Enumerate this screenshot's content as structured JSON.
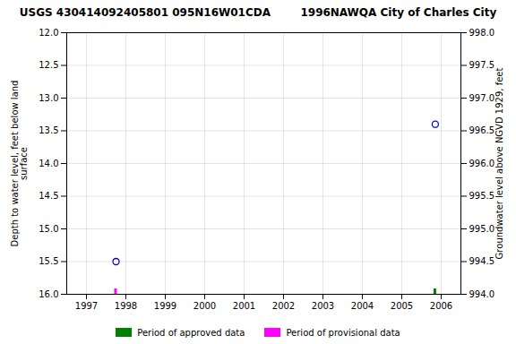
{
  "chart_data": {
    "type": "scatter",
    "title": "USGS 430414092405801 095N16W01CDA        1996NAWQA City of Charles City",
    "ylabel": "Depth to water level, feet below land\nsurface",
    "y2label": "Groundwater level above NGVD 1929, feet",
    "xlim": [
      1996.5,
      2006.5
    ],
    "xticks": [
      1997,
      1998,
      1999,
      2000,
      2001,
      2002,
      2003,
      2004,
      2005,
      2006
    ],
    "ylim": [
      16.0,
      12.0
    ],
    "yticks": [
      {
        "value": 12.0,
        "label": "12.0"
      },
      {
        "value": 12.5,
        "label": "12.5"
      },
      {
        "value": 13.0,
        "label": "13.0"
      },
      {
        "value": 13.5,
        "label": "13.5"
      },
      {
        "value": 14.0,
        "label": "14.0"
      },
      {
        "value": 14.5,
        "label": "14.5"
      },
      {
        "value": 15.0,
        "label": "15.0"
      },
      {
        "value": 15.5,
        "label": "15.5"
      },
      {
        "value": 16.0,
        "label": "16.0"
      }
    ],
    "y2lim": [
      994.0,
      998.0
    ],
    "y2ticks": [
      {
        "value": 994.0,
        "label": "994.0"
      },
      {
        "value": 994.5,
        "label": "994.5"
      },
      {
        "value": 995.0,
        "label": "995.0"
      },
      {
        "value": 995.5,
        "label": "995.5"
      },
      {
        "value": 996.0,
        "label": "996.0"
      },
      {
        "value": 996.5,
        "label": "996.5"
      },
      {
        "value": 997.0,
        "label": "997.0"
      },
      {
        "value": 997.5,
        "label": "997.5"
      },
      {
        "value": 998.0,
        "label": "998.0"
      }
    ],
    "grid": true,
    "legend": "bottom",
    "series": [
      {
        "x": [
          1997.75,
          2005.85
        ],
        "values": [
          15.5,
          13.4
        ],
        "color": "#0000cc",
        "marker": "circle"
      },
      {
        "name": "Period of approved data",
        "color": "#008000",
        "type": "tick",
        "x": [
          2005.85
        ]
      },
      {
        "name": "Period of provisional data",
        "color": "#ff00ff",
        "type": "tick",
        "x": [
          1997.75
        ]
      }
    ]
  }
}
